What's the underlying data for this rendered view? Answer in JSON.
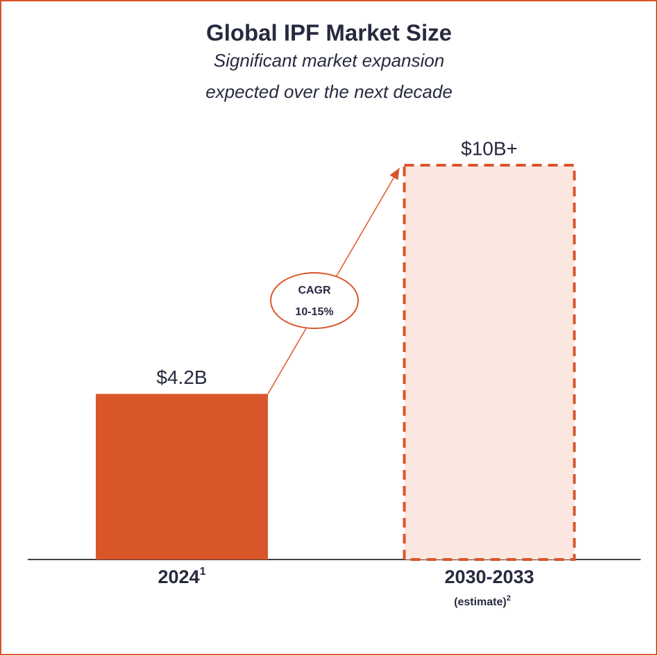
{
  "chart_data": {
    "type": "bar",
    "title": "Global IPF Market Size",
    "subtitle": [
      "Significant market expansion",
      "expected over the next decade"
    ],
    "categories": [
      "2024",
      "2030-2033"
    ],
    "footnotes": [
      "1",
      "2"
    ],
    "estimate_label": "(estimate)",
    "values": [
      4.2,
      10
    ],
    "value_labels": [
      "$4.2B",
      "$10B+"
    ],
    "colors": [
      "#d9562b",
      "#fbe6e0"
    ],
    "dashed": [
      false,
      true
    ],
    "annotation": [
      "CAGR",
      "10-15%"
    ]
  }
}
